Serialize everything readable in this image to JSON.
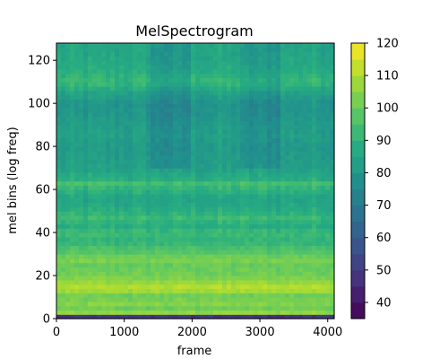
{
  "chart_data": {
    "type": "heatmap",
    "title": "MelSpectrogram",
    "xlabel": "frame",
    "ylabel": "mel bins (log freq)",
    "xlim": [
      0,
      4096
    ],
    "ylim": [
      0,
      128
    ],
    "x_ticks": [
      0,
      1000,
      2000,
      3000,
      4000
    ],
    "y_ticks": [
      0,
      20,
      40,
      60,
      80,
      100,
      120
    ],
    "colormap": "viridis",
    "colorbar": {
      "range": [
        35,
        120
      ],
      "ticks": [
        40,
        50,
        60,
        70,
        80,
        90,
        100,
        110,
        120
      ]
    },
    "band_profile": {
      "description_free": true,
      "bins": [
        0,
        2,
        5,
        8,
        10,
        12,
        14,
        16,
        20,
        25,
        28,
        30,
        33,
        36,
        40,
        44,
        46,
        50,
        56,
        60,
        63,
        65,
        70,
        75,
        80,
        85,
        90,
        95,
        100,
        105,
        110,
        115,
        120,
        125,
        128
      ],
      "values": [
        45,
        108,
        101,
        106,
        99,
        104,
        112,
        108,
        102,
        100,
        104,
        98,
        95,
        90,
        93,
        86,
        94,
        88,
        84,
        90,
        94,
        88,
        83,
        82,
        81,
        83,
        82,
        80,
        79,
        84,
        92,
        88,
        86,
        85,
        85
      ]
    },
    "dimmed_frame_regions": [
      {
        "from": 1400,
        "to": 2000,
        "delta": -6
      },
      {
        "from": 2700,
        "to": 3300,
        "delta": -5
      }
    ]
  }
}
